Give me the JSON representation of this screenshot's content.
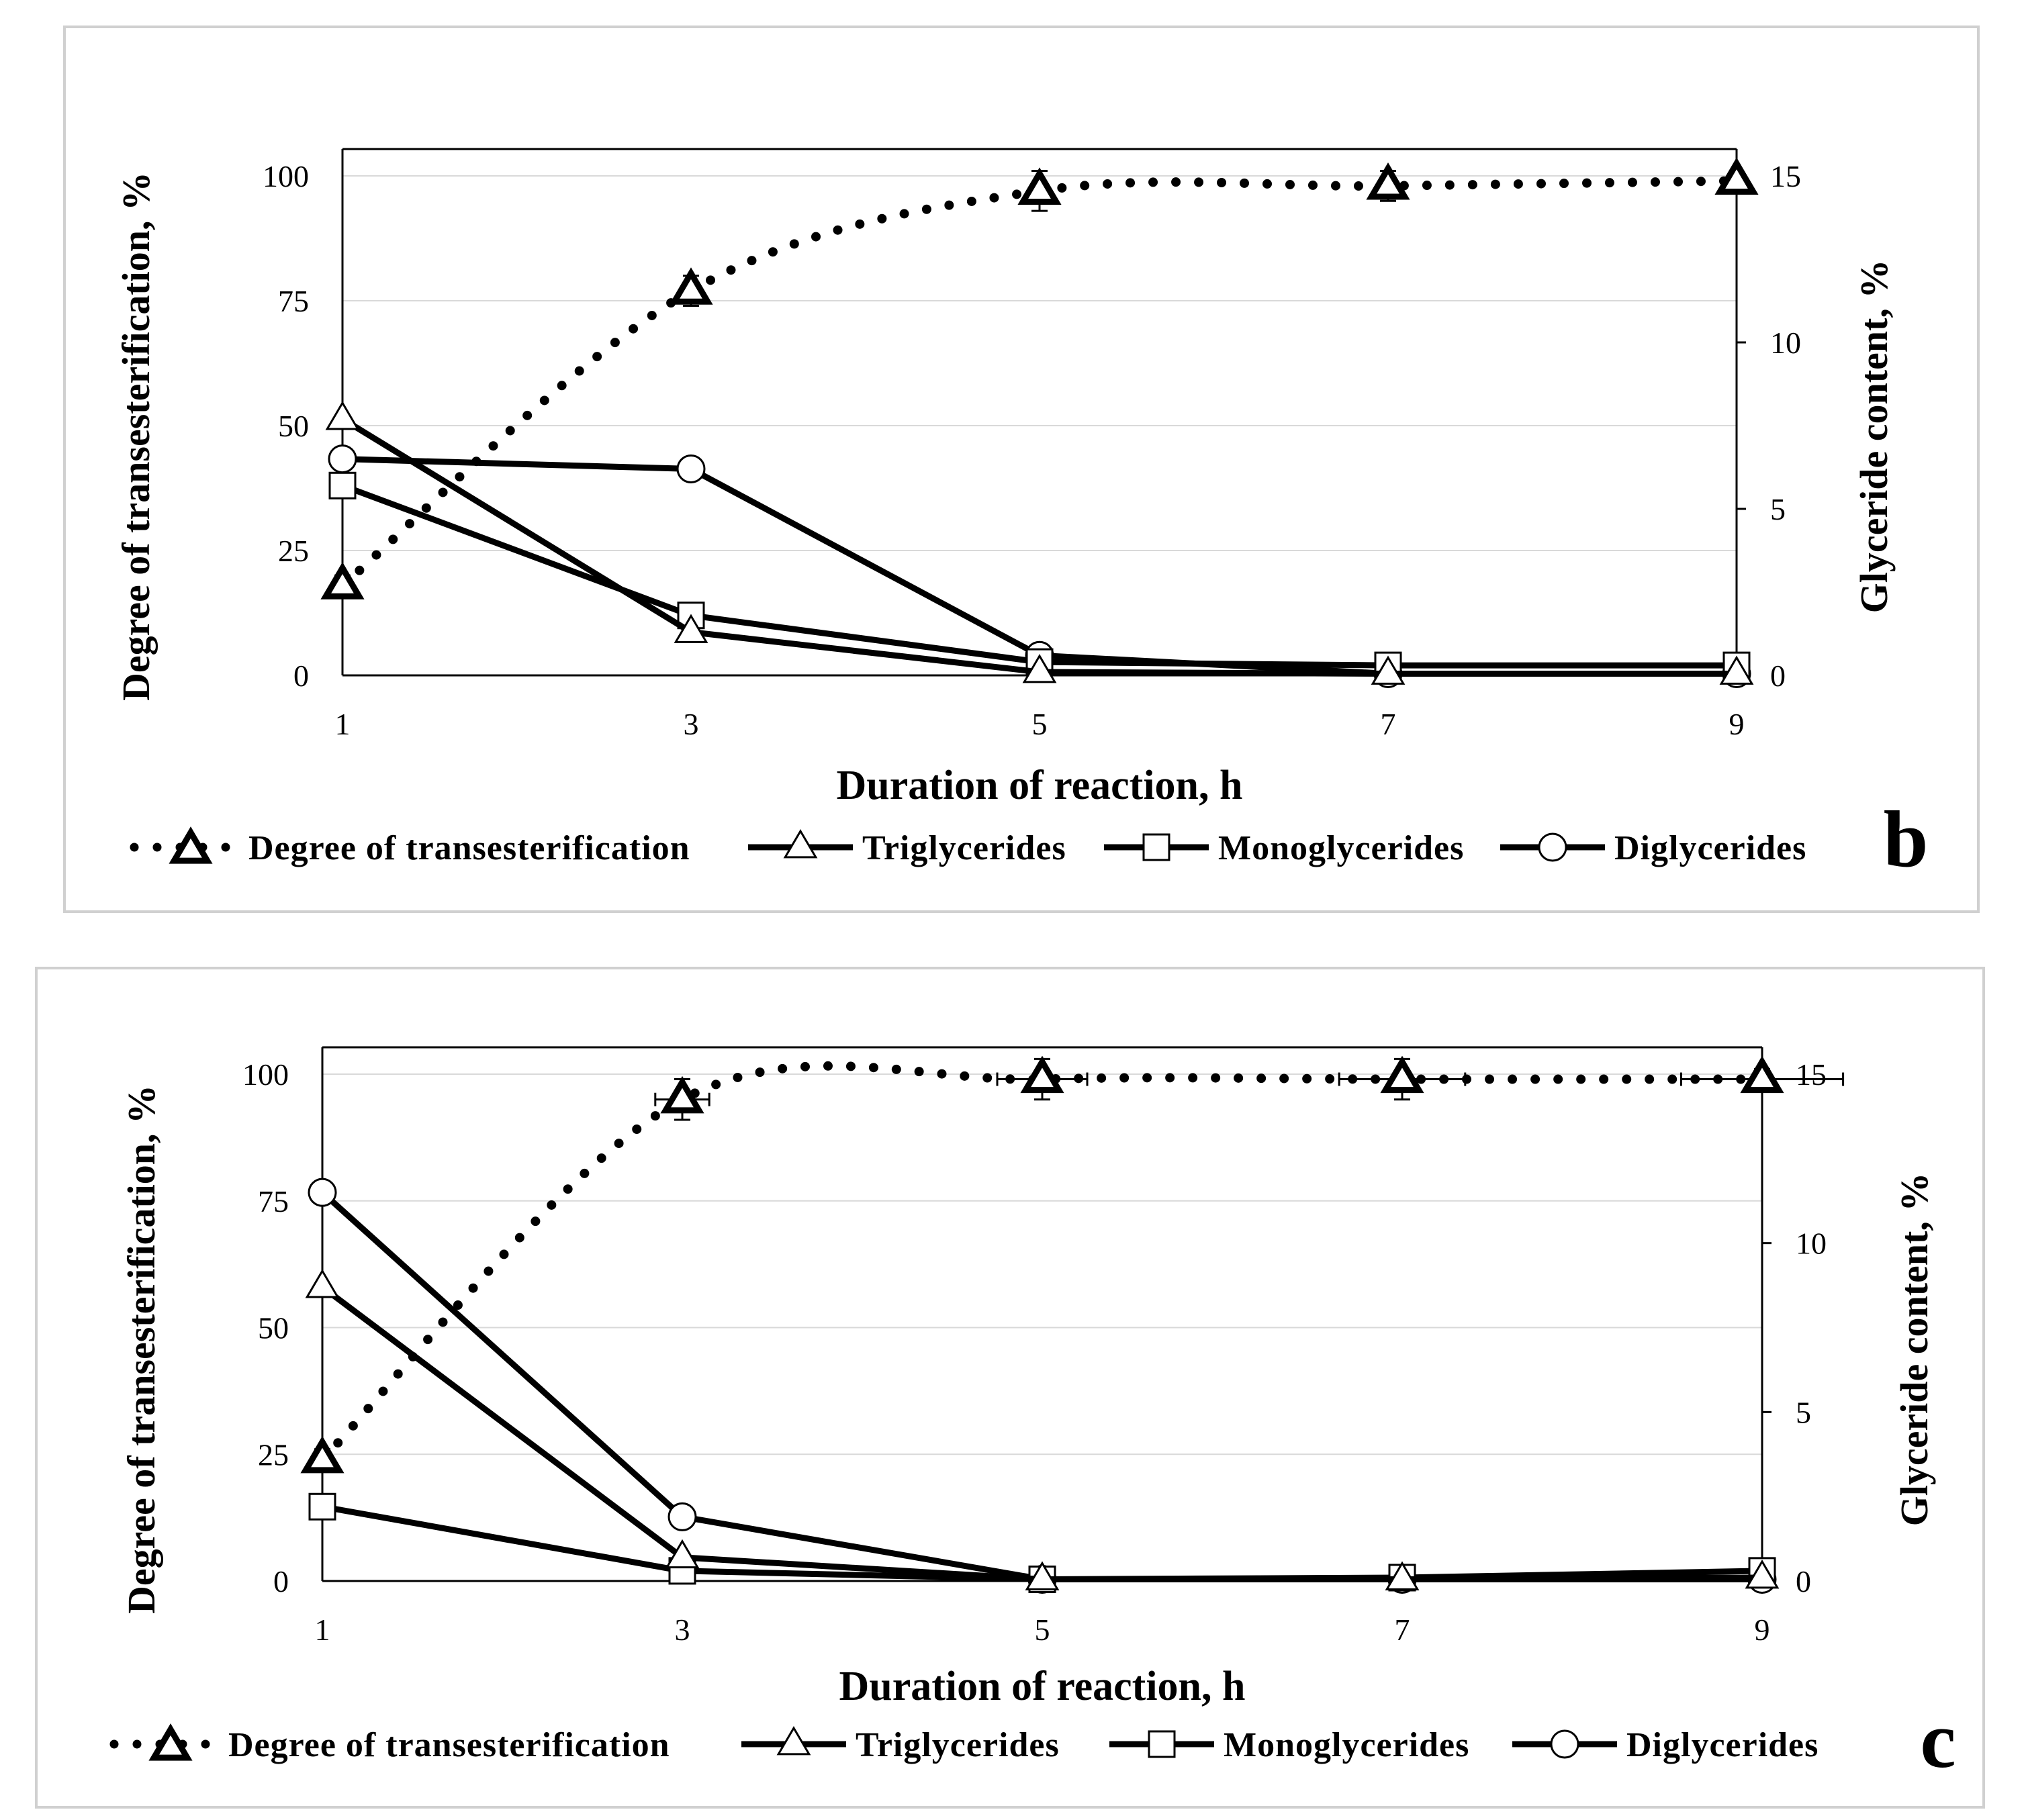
{
  "colors": {
    "ink": "#000000",
    "grid": "#d9d9d9",
    "frame": "#d0d0d0",
    "background": "#ffffff"
  },
  "chart_data": [
    {
      "type": "line",
      "panel_label": "b",
      "xlabel": "Duration of reaction, h",
      "ylabel_left": "Degree of transesterification, %",
      "ylabel_right": "Glyceride content, %",
      "x": [
        1,
        3,
        5,
        7,
        9
      ],
      "x_ticks": [
        "1",
        "3",
        "5",
        "7",
        "9"
      ],
      "xlim": [
        1,
        9
      ],
      "ylim_left": [
        0,
        100
      ],
      "ylim_right": [
        0,
        15
      ],
      "y_ticks_left": [
        "0",
        "25",
        "50",
        "75",
        "100"
      ],
      "y_ticks_right": [
        "0",
        "5",
        "10",
        "15"
      ],
      "series": [
        {
          "name": "Degree of transesterification",
          "axis": "left",
          "marker": "triangle-bold",
          "style": "dotted",
          "smooth": true,
          "values": [
            18,
            77,
            97,
            98,
            99
          ],
          "y_err": [
            2,
            3,
            4,
            3,
            1
          ]
        },
        {
          "name": "Triglycerides",
          "axis": "right",
          "marker": "triangle",
          "style": "solid",
          "values": [
            7.7,
            1.3,
            0.1,
            0.05,
            0.05
          ]
        },
        {
          "name": "Monoglycerides",
          "axis": "right",
          "marker": "square",
          "style": "solid",
          "values": [
            5.7,
            1.8,
            0.4,
            0.3,
            0.3
          ]
        },
        {
          "name": "Diglycerides",
          "axis": "right",
          "marker": "circle",
          "style": "solid",
          "values": [
            6.5,
            6.2,
            0.6,
            0.05,
            0.05
          ]
        }
      ],
      "legend": "bottom"
    },
    {
      "type": "line",
      "panel_label": "c",
      "xlabel": "Duration of reaction, h",
      "ylabel_left": "Degree of transesterification, %",
      "ylabel_right": "Glyceride content, %",
      "x": [
        1,
        3,
        5,
        7,
        9
      ],
      "x_ticks": [
        "1",
        "3",
        "5",
        "7",
        "9"
      ],
      "xlim": [
        1,
        9
      ],
      "ylim_left": [
        0,
        100
      ],
      "ylim_right": [
        0,
        15
      ],
      "y_ticks_left": [
        "0",
        "25",
        "50",
        "75",
        "100"
      ],
      "y_ticks_right": [
        "0",
        "5",
        "10",
        "15"
      ],
      "series": [
        {
          "name": "Degree of transesterification",
          "axis": "left",
          "marker": "triangle-bold",
          "style": "dotted",
          "smooth": true,
          "values": [
            24,
            95,
            99,
            99,
            99
          ],
          "y_err": [
            2,
            4,
            4,
            4,
            2
          ],
          "x_err": [
            0,
            0.15,
            0.25,
            0.35,
            0.45
          ]
        },
        {
          "name": "Triglycerides",
          "axis": "right",
          "marker": "triangle",
          "style": "solid",
          "values": [
            8.7,
            0.7,
            0.05,
            0.05,
            0.1
          ]
        },
        {
          "name": "Monoglycerides",
          "axis": "right",
          "marker": "square",
          "style": "solid",
          "values": [
            2.2,
            0.3,
            0.05,
            0.1,
            0.3
          ]
        },
        {
          "name": "Diglycerides",
          "axis": "right",
          "marker": "circle",
          "style": "solid",
          "values": [
            11.5,
            1.9,
            0.05,
            0.05,
            0.05
          ]
        }
      ],
      "legend": "bottom"
    }
  ]
}
